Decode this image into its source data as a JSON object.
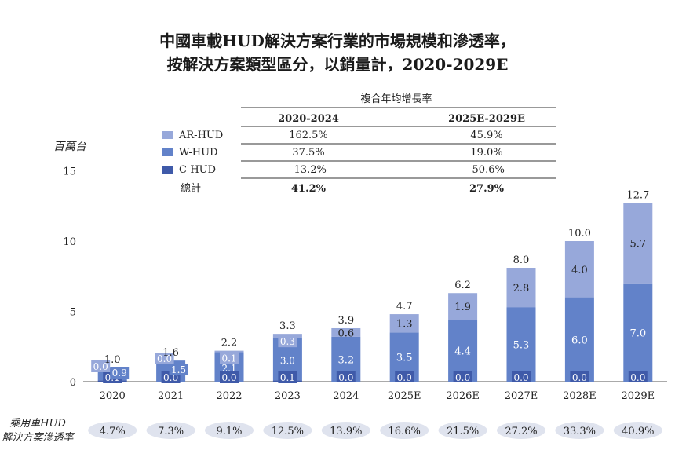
{
  "title_line1": "中國車載HUD解決方案行業的市場規模和滲透率，",
  "title_line2": "按解決方案類型區分，以銷量計，2020-2029E",
  "colors": {
    "c_hud": "#3f5aa9",
    "w_hud": "#6282c9",
    "ar_hud": "#97a8da",
    "pill": "#dfe3ee",
    "text": "#222222"
  },
  "cagr_table": {
    "header": "複合年均增長率",
    "columns": [
      "2020-2024",
      "2025E-2029E"
    ],
    "rows": [
      {
        "label": "AR-HUD",
        "values": [
          "162.5%",
          "45.9%"
        ],
        "color": "#97a8da"
      },
      {
        "label": "W-HUD",
        "values": [
          "37.5%",
          "19.0%"
        ],
        "color": "#6282c9"
      },
      {
        "label": "C-HUD",
        "values": [
          "-13.2%",
          "-50.6%"
        ],
        "color": "#3f5aa9"
      }
    ],
    "total": {
      "label": "總計",
      "values": [
        "41.2%",
        "27.9%"
      ]
    }
  },
  "penetration": {
    "label_line1": "乘用車HUD",
    "label_line2": "解決方案滲透率",
    "values": [
      "4.7%",
      "7.3%",
      "9.1%",
      "12.5%",
      "13.9%",
      "16.6%",
      "21.5%",
      "27.2%",
      "33.3%",
      "40.9%"
    ]
  },
  "chart_data": {
    "type": "bar",
    "stacked": true,
    "ylabel": "百萬台",
    "ylim": [
      0,
      15
    ],
    "yticks": [
      0,
      5,
      10,
      15
    ],
    "categories": [
      "2020",
      "2021",
      "2022",
      "2023",
      "2024",
      "2025E",
      "2026E",
      "2027E",
      "2028E",
      "2029E"
    ],
    "series": [
      {
        "name": "C-HUD",
        "values": [
          0.1,
          0.0,
          0.0,
          0.1,
          0.0,
          0.0,
          0.0,
          0.0,
          0.0,
          0.0
        ],
        "labels": [
          "0.1",
          "0.0",
          "0.0",
          "0.1",
          "0.0",
          "0.0",
          "0.0",
          "0.0",
          "0.0",
          "0.0"
        ]
      },
      {
        "name": "W-HUD",
        "values": [
          0.9,
          1.5,
          2.1,
          3.0,
          3.2,
          3.5,
          4.4,
          5.3,
          6.0,
          7.0
        ],
        "labels": [
          "0.9",
          "1.5",
          "2.1",
          "3.0",
          "3.2",
          "3.5",
          "4.4",
          "5.3",
          "6.0",
          "7.0"
        ]
      },
      {
        "name": "AR-HUD",
        "values": [
          0.0,
          0.0,
          0.1,
          0.3,
          0.6,
          1.3,
          1.9,
          2.8,
          4.0,
          5.7
        ],
        "labels": [
          "0.0",
          "0.0",
          "0.1",
          "0.3",
          "0.6",
          "1.3",
          "1.9",
          "2.8",
          "4.0",
          "5.7"
        ]
      }
    ],
    "totals": [
      "1.0",
      "1.6",
      "2.2",
      "3.3",
      "3.9",
      "4.7",
      "6.2",
      "8.0",
      "10.0",
      "12.7"
    ]
  }
}
